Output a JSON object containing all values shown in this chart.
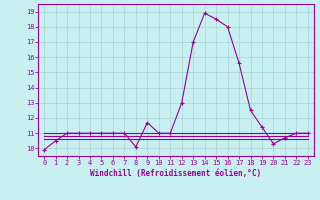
{
  "xlabel": "Windchill (Refroidissement éolien,°C)",
  "bg_color": "#c8f0f0",
  "line_color": "#990099",
  "grid_color": "#b0d8d8",
  "xlim": [
    -0.5,
    23.5
  ],
  "ylim": [
    9.5,
    19.5
  ],
  "yticks": [
    10,
    11,
    12,
    13,
    14,
    15,
    16,
    17,
    18,
    19
  ],
  "xticks": [
    0,
    1,
    2,
    3,
    4,
    5,
    6,
    7,
    8,
    9,
    10,
    11,
    12,
    13,
    14,
    15,
    16,
    17,
    18,
    19,
    20,
    21,
    22,
    23
  ],
  "x": [
    0,
    1,
    2,
    3,
    4,
    5,
    6,
    7,
    8,
    9,
    10,
    11,
    12,
    13,
    14,
    15,
    16,
    17,
    18,
    19,
    20,
    21,
    22,
    23
  ],
  "y_main": [
    9.9,
    10.5,
    11.0,
    11.0,
    11.0,
    11.0,
    11.0,
    11.0,
    10.1,
    11.7,
    11.0,
    11.0,
    13.0,
    17.0,
    18.9,
    18.5,
    18.0,
    15.6,
    12.5,
    11.4,
    10.3,
    10.7,
    11.0,
    11.0
  ],
  "y_flat1": [
    11.0,
    11.0,
    11.0,
    11.0,
    11.0,
    11.0,
    11.0,
    11.0,
    11.0,
    11.0,
    11.0,
    11.0,
    11.0,
    11.0,
    11.0,
    11.0,
    11.0,
    11.0,
    11.0,
    11.0,
    11.0,
    11.0,
    11.0,
    11.0
  ],
  "y_flat2": [
    10.8,
    10.8,
    10.8,
    10.8,
    10.8,
    10.8,
    10.8,
    10.8,
    10.8,
    10.8,
    10.8,
    10.8,
    10.8,
    10.8,
    10.8,
    10.8,
    10.8,
    10.8,
    10.8,
    10.8,
    10.8,
    10.8,
    10.8,
    10.8
  ],
  "y_flat3": [
    10.6,
    10.6,
    10.6,
    10.6,
    10.6,
    10.6,
    10.6,
    10.6,
    10.6,
    10.6,
    10.6,
    10.6,
    10.6,
    10.6,
    10.6,
    10.6,
    10.6,
    10.6,
    10.6,
    10.6,
    10.6,
    10.6,
    10.6,
    10.6
  ]
}
